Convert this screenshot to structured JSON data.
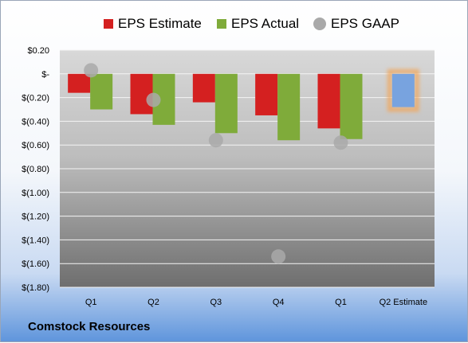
{
  "company": "Comstock Resources",
  "legend": {
    "estimate": "EPS Estimate",
    "actual": "EPS Actual",
    "gaap": "EPS GAAP"
  },
  "colors": {
    "estimate": "#d42020",
    "actual": "#7fab3a",
    "gaap": "#a9a9a9",
    "q2_estimate_fill": "#78a3df",
    "q2_estimate_glow": "#f2a65a",
    "plot_top": "#d8d8d8",
    "plot_bottom": "#6e6e6e"
  },
  "chart_data": {
    "type": "bar",
    "categories": [
      "Q1",
      "Q2",
      "Q3",
      "Q4",
      "Q1",
      "Q2 Estimate"
    ],
    "series": [
      {
        "name": "EPS Estimate",
        "values": [
          -0.16,
          -0.34,
          -0.24,
          -0.35,
          -0.46,
          null
        ]
      },
      {
        "name": "EPS Actual",
        "values": [
          -0.3,
          -0.43,
          -0.5,
          -0.56,
          -0.55,
          null
        ]
      },
      {
        "name": "EPS GAAP",
        "type": "scatter",
        "values": [
          0.03,
          -0.22,
          -0.56,
          -1.54,
          -0.58,
          null
        ]
      },
      {
        "name": "Q2 Estimate",
        "values": [
          null,
          null,
          null,
          null,
          null,
          -0.28
        ]
      }
    ],
    "yticks": [
      0.2,
      0,
      -0.2,
      -0.4,
      -0.6,
      -0.8,
      -1.0,
      -1.2,
      -1.4,
      -1.6,
      -1.8
    ],
    "ytick_labels": [
      "$0.20",
      "$-",
      "$(0.20)",
      "$(0.40)",
      "$(0.60)",
      "$(0.80)",
      "$(1.00)",
      "$(1.20)",
      "$(1.40)",
      "$(1.60)",
      "$(1.80)"
    ],
    "ylim": [
      -1.8,
      0.2
    ],
    "grid": true,
    "legend_position": "top"
  }
}
